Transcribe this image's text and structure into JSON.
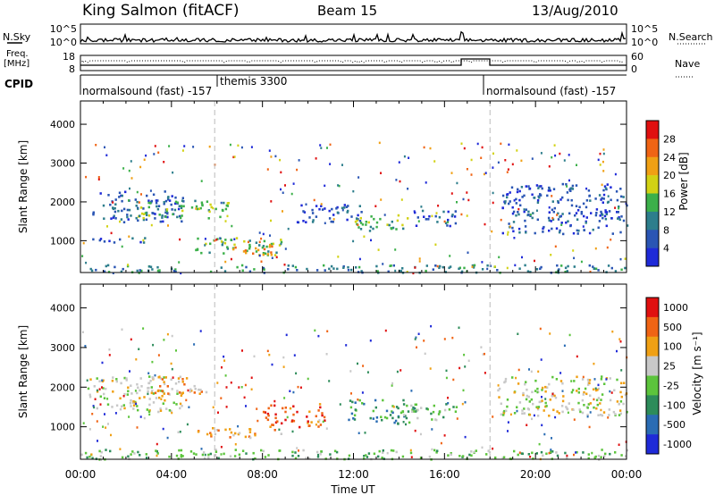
{
  "header": {
    "station": "King Salmon (fitACF)",
    "beam": "Beam 15",
    "date": "13/Aug/2010"
  },
  "sky_panel": {
    "left_label": "N.Sky",
    "right_label": "N.Search",
    "left_ticks": [
      "10^5",
      "10^0"
    ],
    "right_ticks": [
      "10^5",
      "10^0"
    ]
  },
  "freq_panel": {
    "left_label_line1": "Freq.",
    "left_label_line2": "[MHz]",
    "right_label": "Nave",
    "left_ticks": [
      "18",
      "8"
    ],
    "right_ticks": [
      "60",
      "0"
    ]
  },
  "cpid_panel": {
    "label": "CPID",
    "segments": [
      {
        "text": "normalsound (fast) -157",
        "start_hour": 0
      },
      {
        "text": "themis 3300",
        "start_hour": 5.9
      },
      {
        "text": "normalsound (fast) -157",
        "start_hour": 18.0
      }
    ]
  },
  "chart_data": [
    {
      "type": "heatmap",
      "name": "power",
      "xlabel": "",
      "ylabel": "Slant Range [km]",
      "xlim": [
        0,
        24
      ],
      "ylim": [
        180,
        4600
      ],
      "yticks": [
        "1000",
        "2000",
        "3000",
        "4000"
      ],
      "colorbar": {
        "label": "Power [dB]",
        "ticks": [
          "4",
          "8",
          "12",
          "16",
          "20",
          "24",
          "28"
        ],
        "colors": [
          "#1f2ad8",
          "#2a55b4",
          "#2d7e8c",
          "#3cb04a",
          "#d2d214",
          "#f0a014",
          "#f06414",
          "#e01010"
        ]
      },
      "regions": [
        {
          "x": [
            0.5,
            4.5
          ],
          "y": [
            1500,
            2300
          ],
          "level": 1
        },
        {
          "x": [
            2.5,
            6.5
          ],
          "y": [
            1600,
            2100
          ],
          "level": 3
        },
        {
          "x": [
            0.5,
            3.0
          ],
          "y": [
            950,
            1100
          ],
          "level": 1
        },
        {
          "x": [
            5.0,
            8.8
          ],
          "y": [
            650,
            1100
          ],
          "level": 3
        },
        {
          "x": [
            6.5,
            8.5
          ],
          "y": [
            650,
            950
          ],
          "level": 5
        },
        {
          "x": [
            9.5,
            12.5
          ],
          "y": [
            1500,
            2000
          ],
          "level": 1
        },
        {
          "x": [
            12.0,
            14.5
          ],
          "y": [
            1250,
            1700
          ],
          "level": 3
        },
        {
          "x": [
            14.5,
            16.5
          ],
          "y": [
            1400,
            1800
          ],
          "level": 1
        },
        {
          "x": [
            18.5,
            24.0
          ],
          "y": [
            1200,
            2500
          ],
          "level": 1
        },
        {
          "x": [
            0.0,
            24.0
          ],
          "y": [
            200,
            400
          ],
          "level": 2
        }
      ]
    },
    {
      "type": "heatmap",
      "name": "velocity",
      "xlabel": "Time UT",
      "ylabel": "Slant Range [km]",
      "xlim": [
        0,
        24
      ],
      "ylim": [
        180,
        4600
      ],
      "xticks": [
        "00:00",
        "04:00",
        "08:00",
        "12:00",
        "16:00",
        "20:00",
        "00:00"
      ],
      "yticks": [
        "1000",
        "2000",
        "3000",
        "4000"
      ],
      "colorbar": {
        "label": "Velocity [m s⁻¹]",
        "ticks": [
          "1000",
          "500",
          "100",
          "25",
          "-25",
          "-100",
          "-500",
          "-1000"
        ],
        "colors": [
          "#1f2ad8",
          "#2a6cb4",
          "#2d8c5a",
          "#5cc43c",
          "#c8c8c8",
          "#f0a014",
          "#f06414",
          "#e01010"
        ]
      },
      "regions": [
        {
          "x": [
            0.3,
            4.5
          ],
          "y": [
            1400,
            2300
          ],
          "level": 4
        },
        {
          "x": [
            3.0,
            5.5
          ],
          "y": [
            1800,
            2300
          ],
          "level": 5
        },
        {
          "x": [
            5.0,
            9.0
          ],
          "y": [
            750,
            1000
          ],
          "level": 5
        },
        {
          "x": [
            8.0,
            10.8
          ],
          "y": [
            1000,
            1600
          ],
          "level": 6
        },
        {
          "x": [
            11.5,
            14.8
          ],
          "y": [
            1100,
            1700
          ],
          "level": 2
        },
        {
          "x": [
            14.0,
            16.5
          ],
          "y": [
            1200,
            1600
          ],
          "level": 3
        },
        {
          "x": [
            18.3,
            24.0
          ],
          "y": [
            1300,
            2300
          ],
          "level": 4
        },
        {
          "x": [
            0.0,
            24.0
          ],
          "y": [
            200,
            450
          ],
          "level": 3
        }
      ]
    }
  ]
}
